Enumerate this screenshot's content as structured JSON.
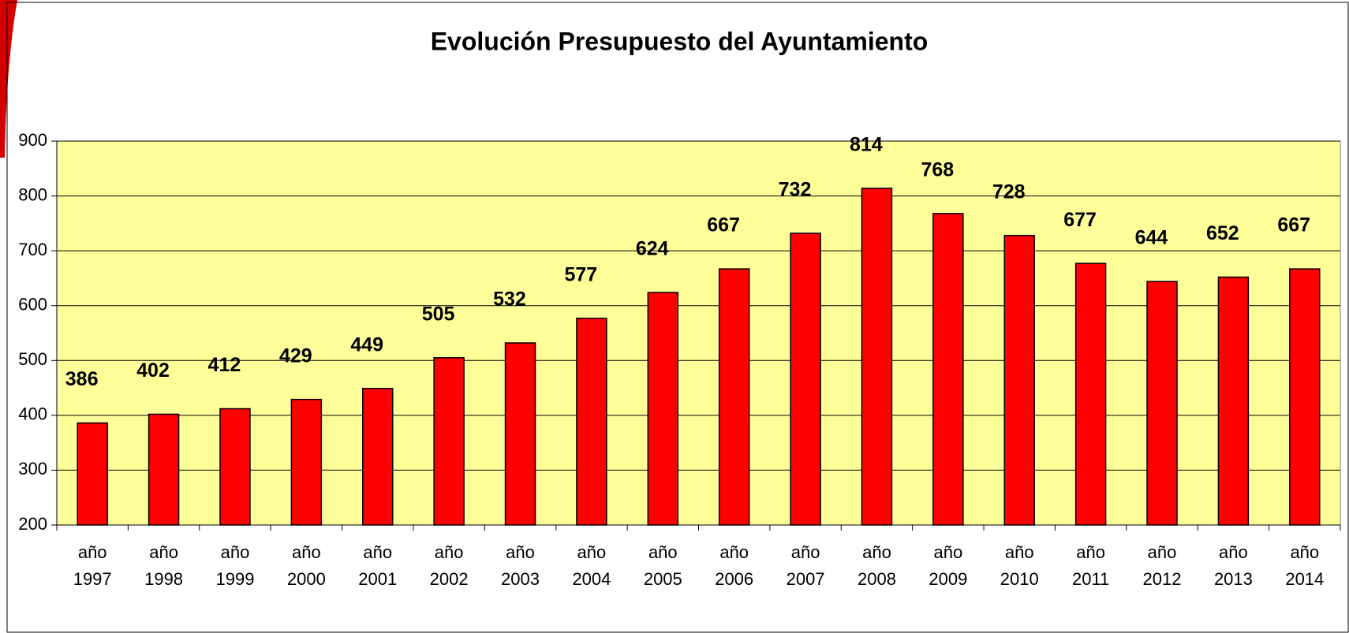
{
  "chart_data": {
    "type": "bar",
    "title": "Evolución Presupuesto del Ayuntamiento",
    "categories": [
      "año 1997",
      "año 1998",
      "año 1999",
      "año 2000",
      "año 2001",
      "año 2002",
      "año 2003",
      "año 2004",
      "año 2005",
      "año 2006",
      "año 2007",
      "año 2008",
      "año 2009",
      "año 2010",
      "año 2011",
      "año 2012",
      "año 2013",
      "año 2014"
    ],
    "values": [
      386,
      402,
      412,
      429,
      449,
      505,
      532,
      577,
      624,
      667,
      732,
      814,
      768,
      728,
      677,
      644,
      652,
      667
    ],
    "color": "#ff0000",
    "plot_background": "#ffff99",
    "ylim": [
      200,
      900
    ],
    "yticks": [
      200,
      300,
      400,
      500,
      600,
      700,
      800,
      900
    ],
    "grid": true
  }
}
